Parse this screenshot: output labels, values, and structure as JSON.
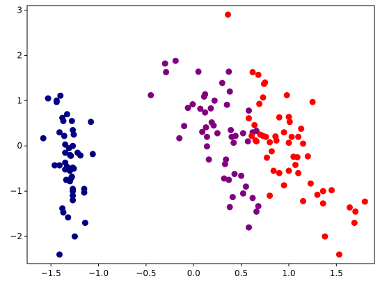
{
  "chart_data": {
    "type": "scatter",
    "title": "",
    "xlabel": "",
    "ylabel": "",
    "xlim": [
      -1.75,
      1.9
    ],
    "ylim": [
      -2.6,
      3.1
    ],
    "xticks": [
      -1.5,
      -1.0,
      -0.5,
      0.0,
      0.5,
      1.0,
      1.5
    ],
    "xtick_labels": [
      "−1.5",
      "−1.0",
      "−0.5",
      "0.0",
      "0.5",
      "1.0",
      "1.5"
    ],
    "yticks": [
      -2,
      -1,
      0,
      1,
      2,
      3
    ],
    "ytick_labels": [
      "−2",
      "−1",
      "0",
      "1",
      "2",
      "3"
    ],
    "grid": false,
    "series": [
      {
        "color": "#000080",
        "points": [
          [
            -1.58,
            0.17
          ],
          [
            -1.53,
            1.05
          ],
          [
            -1.44,
            0.97
          ],
          [
            -1.44,
            1.0
          ],
          [
            -1.4,
            1.11
          ],
          [
            -1.37,
            0.55
          ],
          [
            -1.38,
            0.62
          ],
          [
            -1.41,
            0.3
          ],
          [
            -1.36,
            0.22
          ],
          [
            -1.33,
            0.7
          ],
          [
            -1.35,
            0.03
          ],
          [
            -1.28,
            0.55
          ],
          [
            -1.27,
            0.35
          ],
          [
            -1.26,
            0.25
          ],
          [
            -1.31,
            -0.05
          ],
          [
            -1.27,
            0.0
          ],
          [
            -1.35,
            -0.15
          ],
          [
            -1.3,
            -0.2
          ],
          [
            -1.29,
            -0.22
          ],
          [
            -1.22,
            -0.15
          ],
          [
            -1.19,
            -0.21
          ],
          [
            -1.08,
            0.53
          ],
          [
            -1.06,
            -0.18
          ],
          [
            -1.46,
            -0.43
          ],
          [
            -1.41,
            -0.43
          ],
          [
            -1.35,
            -0.37
          ],
          [
            -1.33,
            -0.46
          ],
          [
            -1.35,
            -0.52
          ],
          [
            -1.3,
            -0.55
          ],
          [
            -1.26,
            -0.5
          ],
          [
            -1.27,
            -0.48
          ],
          [
            -1.34,
            -0.75
          ],
          [
            -1.3,
            -0.78
          ],
          [
            -1.28,
            -0.68
          ],
          [
            -1.29,
            -0.72
          ],
          [
            -1.27,
            -0.95
          ],
          [
            -1.27,
            -1.0
          ],
          [
            -1.15,
            -0.95
          ],
          [
            -1.15,
            -1.03
          ],
          [
            -1.27,
            -1.1
          ],
          [
            -1.27,
            -1.2
          ],
          [
            -1.38,
            -1.38
          ],
          [
            -1.37,
            -1.47
          ],
          [
            -1.32,
            -1.58
          ],
          [
            -1.14,
            -1.7
          ],
          [
            -1.25,
            -2.0
          ],
          [
            -1.41,
            -2.4
          ]
        ]
      },
      {
        "color": "#800080",
        "points": [
          [
            -0.45,
            1.12
          ],
          [
            -0.3,
            1.82
          ],
          [
            -0.29,
            1.63
          ],
          [
            -0.19,
            1.88
          ],
          [
            -0.1,
            0.44
          ],
          [
            -0.06,
            0.84
          ],
          [
            -0.01,
            0.92
          ],
          [
            -0.15,
            0.17
          ],
          [
            0.05,
            1.64
          ],
          [
            0.07,
            0.82
          ],
          [
            0.09,
            0.31
          ],
          [
            0.11,
            1.09
          ],
          [
            0.12,
            1.14
          ],
          [
            0.12,
            0.74
          ],
          [
            0.13,
            0.41
          ],
          [
            0.14,
            0.2
          ],
          [
            0.14,
            -0.01
          ],
          [
            0.16,
            -0.3
          ],
          [
            0.18,
            0.83
          ],
          [
            0.19,
            0.52
          ],
          [
            0.21,
            0.45
          ],
          [
            0.22,
            1.0
          ],
          [
            0.25,
            0.28
          ],
          [
            0.3,
            1.39
          ],
          [
            0.35,
            0.91
          ],
          [
            0.37,
            1.64
          ],
          [
            0.38,
            1.2
          ],
          [
            0.34,
            -0.3
          ],
          [
            0.32,
            -0.72
          ],
          [
            0.39,
            0.35
          ],
          [
            0.4,
            0.2
          ],
          [
            0.42,
            0.07
          ],
          [
            0.44,
            0.22
          ],
          [
            0.41,
            -1.13
          ],
          [
            0.38,
            -1.35
          ],
          [
            0.43,
            -0.62
          ],
          [
            0.5,
            -0.66
          ],
          [
            0.52,
            0.28
          ],
          [
            0.55,
            -0.9
          ],
          [
            0.52,
            -1.05
          ],
          [
            0.58,
            0.78
          ],
          [
            0.58,
            -1.8
          ],
          [
            0.62,
            -1.15
          ],
          [
            0.66,
            -1.45
          ],
          [
            0.68,
            -1.33
          ],
          [
            0.57,
            0.1
          ],
          [
            0.62,
            0.3
          ],
          [
            0.66,
            0.33
          ],
          [
            0.33,
            -0.4
          ],
          [
            0.37,
            -0.75
          ]
        ]
      },
      {
        "color": "#ff0000",
        "points": [
          [
            0.36,
            2.9
          ],
          [
            0.62,
            1.63
          ],
          [
            0.68,
            1.57
          ],
          [
            0.74,
            1.37
          ],
          [
            0.75,
            1.4
          ],
          [
            0.73,
            1.07
          ],
          [
            0.69,
            0.93
          ],
          [
            0.58,
            0.61
          ],
          [
            0.64,
            0.46
          ],
          [
            0.61,
            0.22
          ],
          [
            0.65,
            0.12
          ],
          [
            0.66,
            0.1
          ],
          [
            0.7,
            0.25
          ],
          [
            0.73,
            0.22
          ],
          [
            0.76,
            0.2
          ],
          [
            0.77,
            -0.26
          ],
          [
            0.8,
            0.08
          ],
          [
            0.82,
            -0.12
          ],
          [
            0.86,
            0.21
          ],
          [
            0.87,
            0.12
          ],
          [
            0.9,
            0.63
          ],
          [
            0.95,
            0.3
          ],
          [
            0.98,
            1.12
          ],
          [
            1.0,
            0.64
          ],
          [
            1.01,
            0.53
          ],
          [
            1.0,
            0.07
          ],
          [
            1.03,
            0.2
          ],
          [
            1.05,
            -0.24
          ],
          [
            1.1,
            0.2
          ],
          [
            1.09,
            -0.25
          ],
          [
            1.13,
            0.38
          ],
          [
            1.15,
            0.05
          ],
          [
            1.2,
            -0.23
          ],
          [
            1.25,
            0.97
          ],
          [
            0.84,
            -0.55
          ],
          [
            0.9,
            -0.6
          ],
          [
            0.95,
            -0.87
          ],
          [
            1.0,
            -0.55
          ],
          [
            1.07,
            -0.42
          ],
          [
            1.1,
            -0.6
          ],
          [
            0.8,
            -1.1
          ],
          [
            1.15,
            -1.22
          ],
          [
            1.23,
            -0.83
          ],
          [
            1.3,
            -1.08
          ],
          [
            1.36,
            -1.0
          ],
          [
            1.45,
            -0.98
          ],
          [
            1.36,
            -1.27
          ],
          [
            1.38,
            -2.0
          ],
          [
            1.53,
            -2.4
          ],
          [
            1.64,
            -1.36
          ],
          [
            1.7,
            -1.45
          ],
          [
            1.69,
            -1.7
          ],
          [
            1.8,
            -1.23
          ]
        ]
      }
    ]
  }
}
